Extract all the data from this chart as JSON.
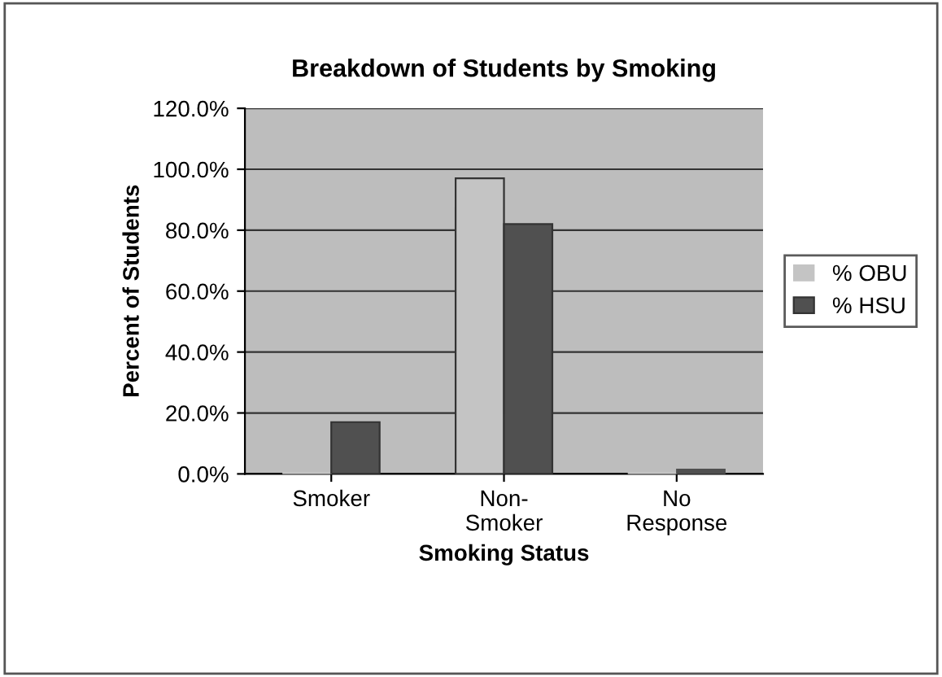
{
  "chart_data": {
    "type": "bar",
    "title": "Breakdown of Students by Smoking",
    "xlabel": "Smoking Status",
    "ylabel": "Percent of Students",
    "categories": [
      "Smoker",
      "Non-\nSmoker",
      "No\nResponse"
    ],
    "series": [
      {
        "name": "% OBU",
        "color": "#c4c4c4",
        "values": [
          0.5,
          97,
          0.5
        ]
      },
      {
        "name": "% HSU",
        "color": "#505050",
        "values": [
          17,
          82,
          1.5
        ]
      }
    ],
    "ylim": [
      0,
      120
    ],
    "yticks": [
      {
        "value": 0,
        "label": "0.0%"
      },
      {
        "value": 20,
        "label": "20.0%"
      },
      {
        "value": 40,
        "label": "40.0%"
      },
      {
        "value": 60,
        "label": "60.0%"
      },
      {
        "value": 80,
        "label": "80.0%"
      },
      {
        "value": 100,
        "label": "100.0%"
      },
      {
        "value": 120,
        "label": "120.0%"
      }
    ],
    "grid": "y",
    "legend": "right"
  }
}
